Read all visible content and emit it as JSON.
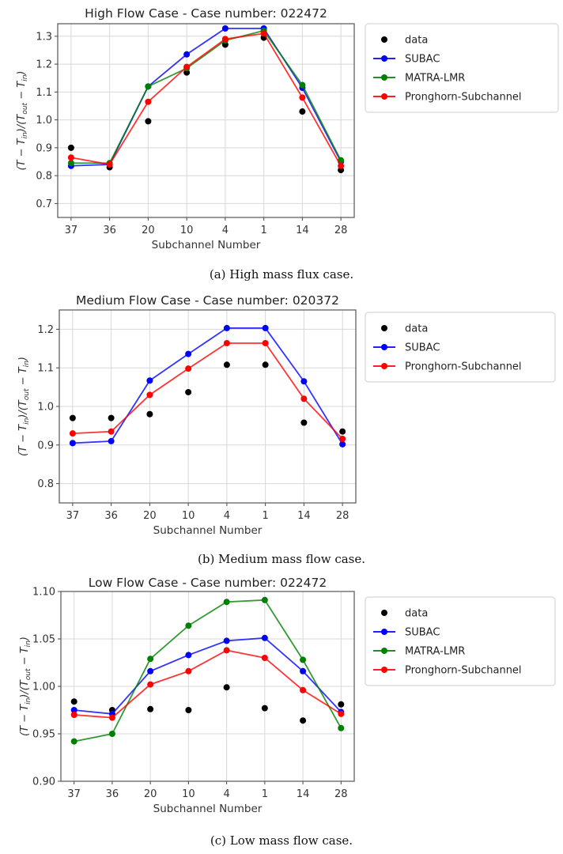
{
  "chart_data": [
    {
      "type": "line",
      "title": "High Flow Case - Case number: 022472",
      "xlabel": "Subchannel Number",
      "ylabel": "(T − T_{in})/(T_{out} − T_{in})",
      "caption": "(a) High mass flux case.",
      "categories": [
        "37",
        "36",
        "20",
        "10",
        "4",
        "1",
        "14",
        "28"
      ],
      "ylim": [
        0.65,
        1.345
      ],
      "yticks": [
        "0.7",
        "0.8",
        "0.9",
        "1.0",
        "1.1",
        "1.2",
        "1.3"
      ],
      "grid": true,
      "legend_placement": "outside-right",
      "series": [
        {
          "name": "data",
          "color": "#000000",
          "style": "markers",
          "values": [
            0.9,
            0.83,
            0.995,
            1.17,
            1.27,
            1.295,
            1.03,
            0.82
          ]
        },
        {
          "name": "SUBAC",
          "color": "#0000ff",
          "style": "line-markers",
          "values": [
            0.835,
            0.84,
            1.12,
            1.235,
            1.328,
            1.328,
            1.115,
            0.85
          ]
        },
        {
          "name": "MATRA-LMR",
          "color": "#008000",
          "style": "line-markers",
          "values": [
            0.845,
            0.845,
            1.12,
            1.185,
            1.285,
            1.32,
            1.125,
            0.855
          ]
        },
        {
          "name": "Pronghorn-Subchannel",
          "color": "#ff0000",
          "style": "line-markers",
          "values": [
            0.865,
            0.84,
            1.065,
            1.19,
            1.29,
            1.31,
            1.08,
            0.835
          ]
        }
      ]
    },
    {
      "type": "line",
      "title": "Medium Flow Case - Case number: 020372",
      "xlabel": "Subchannel Number",
      "ylabel": "(T − T_{in})/(T_{out} − T_{in})",
      "caption": "(b) Medium mass flow case.",
      "categories": [
        "37",
        "36",
        "20",
        "10",
        "4",
        "1",
        "14",
        "28"
      ],
      "ylim": [
        0.75,
        1.25
      ],
      "yticks": [
        "0.8",
        "0.9",
        "1.0",
        "1.1",
        "1.2"
      ],
      "grid": true,
      "legend_placement": "outside-right",
      "series": [
        {
          "name": "data",
          "color": "#000000",
          "style": "markers",
          "values": [
            0.97,
            0.97,
            0.98,
            1.037,
            1.108,
            1.108,
            0.958,
            0.935
          ]
        },
        {
          "name": "SUBAC",
          "color": "#0000ff",
          "style": "line-markers",
          "values": [
            0.905,
            0.91,
            1.067,
            1.136,
            1.203,
            1.203,
            1.065,
            0.902
          ]
        },
        {
          "name": "Pronghorn-Subchannel",
          "color": "#ff0000",
          "style": "line-markers",
          "values": [
            0.93,
            0.935,
            1.03,
            1.098,
            1.164,
            1.164,
            1.02,
            0.916
          ]
        }
      ]
    },
    {
      "type": "line",
      "title": "Low Flow Case - Case number: 022472",
      "xlabel": "Subchannel Number",
      "ylabel": "(T − T_{in})/(T_{out} − T_{in})",
      "caption": "(c) Low mass flow case.",
      "categories": [
        "37",
        "36",
        "20",
        "10",
        "4",
        "1",
        "14",
        "28"
      ],
      "ylim": [
        0.9,
        1.1
      ],
      "yticks": [
        "0.90",
        "0.95",
        "1.00",
        "1.05",
        "1.10"
      ],
      "grid": true,
      "legend_placement": "outside-right",
      "series": [
        {
          "name": "data",
          "color": "#000000",
          "style": "markers",
          "values": [
            0.984,
            0.975,
            0.976,
            0.975,
            0.999,
            0.977,
            0.964,
            0.981
          ]
        },
        {
          "name": "SUBAC",
          "color": "#0000ff",
          "style": "line-markers",
          "values": [
            0.975,
            0.971,
            1.016,
            1.033,
            1.048,
            1.051,
            1.016,
            0.973
          ]
        },
        {
          "name": "MATRA-LMR",
          "color": "#008000",
          "style": "line-markers",
          "values": [
            0.942,
            0.95,
            1.029,
            1.064,
            1.089,
            1.091,
            1.028,
            0.956
          ]
        },
        {
          "name": "Pronghorn-Subchannel",
          "color": "#ff0000",
          "style": "line-markers",
          "values": [
            0.97,
            0.967,
            1.002,
            1.016,
            1.038,
            1.03,
            0.996,
            0.971
          ]
        }
      ]
    }
  ]
}
